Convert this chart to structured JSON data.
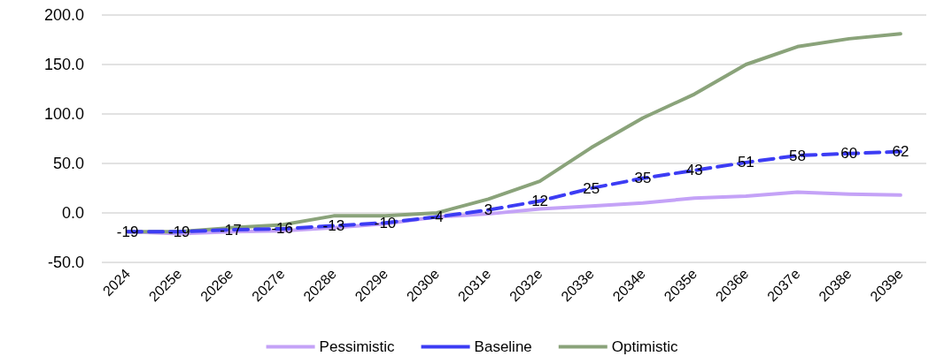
{
  "chart_data": {
    "type": "line",
    "categories": [
      "2024",
      "2025e",
      "2026e",
      "2027e",
      "2028e",
      "2029e",
      "2030e",
      "2031e",
      "2032e",
      "2033e",
      "2034e",
      "2035e",
      "2036e",
      "2037e",
      "2038e",
      "2039e"
    ],
    "series": [
      {
        "name": "Pessimistic",
        "color": "#c4a2f7",
        "line_style": "solid",
        "values": [
          -19,
          -21,
          -19,
          -18,
          -15,
          -11,
          -4,
          -1,
          4,
          7,
          10,
          15,
          17,
          21,
          19,
          18
        ]
      },
      {
        "name": "Baseline",
        "color": "#3c3cf4",
        "line_style": "dashed",
        "values": [
          -19,
          -19,
          -17,
          -16,
          -13,
          -10,
          -4,
          3,
          12,
          25,
          35,
          43,
          51,
          58,
          60,
          62
        ],
        "value_labels": [
          "-19",
          "-19",
          "-17",
          "-16",
          "-13",
          "-10",
          "-4",
          "3",
          "12",
          "25",
          "35",
          "43",
          "51",
          "58",
          "60",
          "62"
        ]
      },
      {
        "name": "Optimistic",
        "color": "#8aa37a",
        "line_style": "solid",
        "values": [
          -19,
          -19,
          -15,
          -12,
          -3,
          -3,
          0,
          14,
          32,
          66,
          96,
          120,
          150,
          168,
          176,
          181
        ]
      }
    ],
    "ylim": [
      -50,
      200
    ],
    "yticks": [
      {
        "value": -50,
        "label": "-50.0"
      },
      {
        "value": 0,
        "label": "0.0"
      },
      {
        "value": 50,
        "label": "50.0"
      },
      {
        "value": 100,
        "label": "100.0"
      },
      {
        "value": 150,
        "label": "150.0"
      },
      {
        "value": 200,
        "label": "200.0"
      }
    ],
    "grid": "y",
    "legend": "bottom",
    "marker": "none"
  }
}
